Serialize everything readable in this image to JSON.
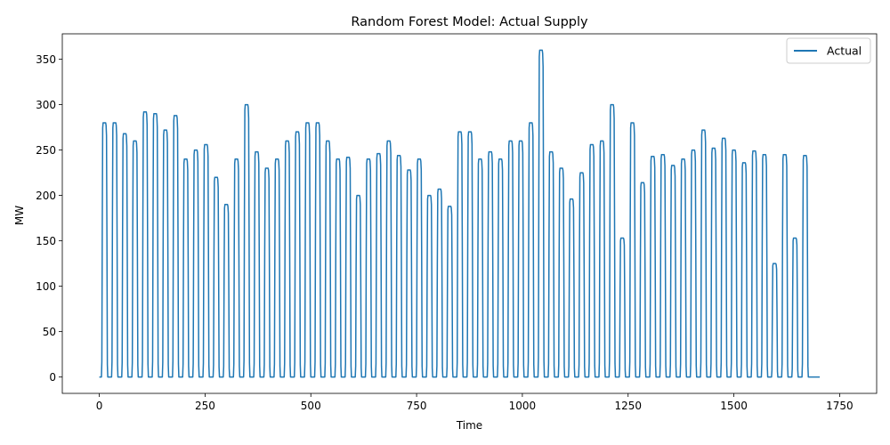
{
  "chart_data": {
    "type": "line",
    "title": "Random Forest Model: Actual Supply",
    "xlabel": "Time",
    "ylabel": "MW",
    "xlim": [
      -87.5,
      1837.5
    ],
    "ylim": [
      -18,
      378
    ],
    "xticks": [
      0,
      250,
      500,
      750,
      1000,
      1250,
      1500,
      1750
    ],
    "yticks": [
      0,
      50,
      100,
      150,
      200,
      250,
      300,
      350
    ],
    "grid": false,
    "legend_position": "top-right",
    "color": "#1f77b4",
    "series": [
      {
        "name": "Actual",
        "day_length": 24,
        "day_peaks": [
          280,
          280,
          268,
          260,
          292,
          290,
          272,
          288,
          240,
          250,
          256,
          220,
          190,
          240,
          300,
          248,
          230,
          240,
          260,
          270,
          280,
          280,
          260,
          240,
          242,
          200,
          240,
          246,
          260,
          244,
          228,
          240,
          200,
          207,
          188,
          270,
          270,
          240,
          248,
          240,
          260,
          260,
          280,
          360,
          248,
          230,
          196,
          225,
          256,
          260,
          300,
          153,
          280,
          214,
          243,
          245,
          233,
          240,
          250,
          272,
          252,
          263,
          250,
          236,
          249,
          245,
          125,
          245,
          153,
          244,
          0
        ]
      }
    ]
  }
}
